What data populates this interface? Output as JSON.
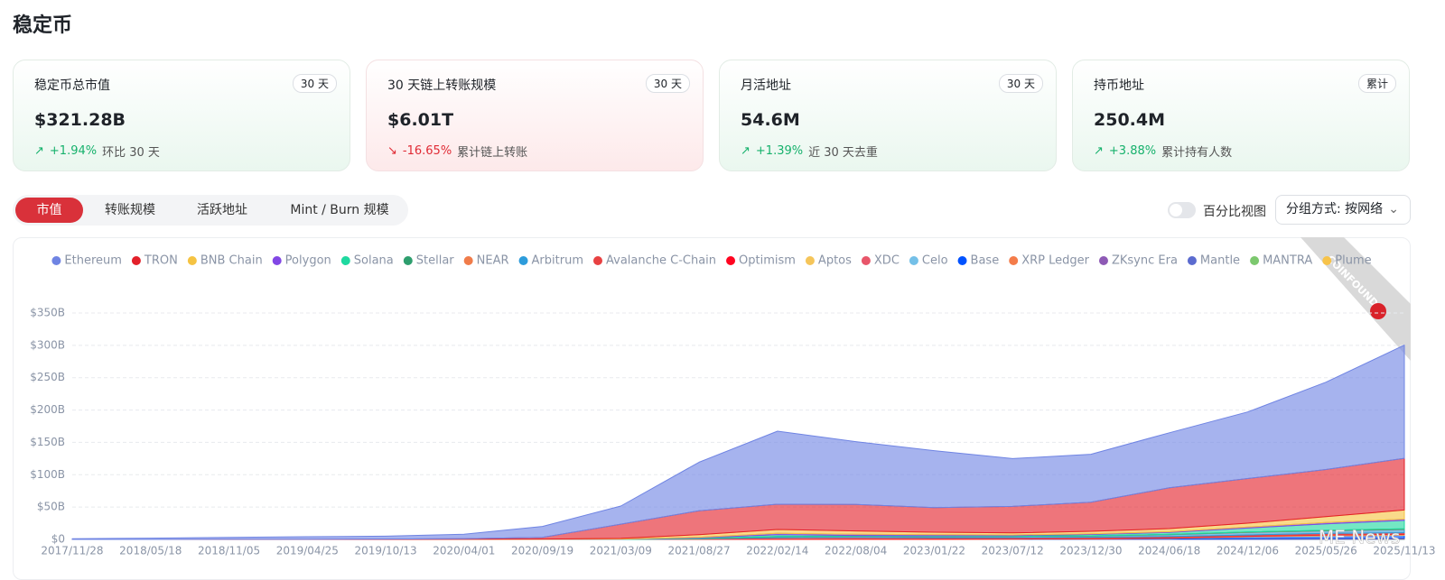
{
  "header": {
    "title": "稳定币"
  },
  "cards": [
    {
      "label": "稳定币总市值",
      "badge": "30 天",
      "value": "$321.28B",
      "change": "+1.94%",
      "note": "环比 30 天"
    },
    {
      "label": "30 天链上转账规模",
      "badge": "30 天",
      "value": "$6.01T",
      "change": "-16.65%",
      "note": "累计链上转账"
    },
    {
      "label": "月活地址",
      "badge": "30 天",
      "value": "54.6M",
      "change": "+1.39%",
      "note": "近 30 天去重"
    },
    {
      "label": "持币地址",
      "badge": "累计",
      "value": "250.4M",
      "change": "+3.88%",
      "note": "累计持有人数"
    }
  ],
  "tabs": [
    "市值",
    "转账规模",
    "活跃地址",
    "Mint / Burn 规模"
  ],
  "controls": {
    "toggle_label": "百分比视图",
    "group_by": "分组方式: 按网络"
  },
  "watermarks": [
    "COINFOUND",
    "ME News"
  ],
  "chart_data": {
    "type": "stacked_area",
    "categories": [
      "2017/11/28",
      "2018/05/18",
      "2018/11/05",
      "2019/04/25",
      "2019/10/13",
      "2020/04/01",
      "2020/09/19",
      "2021/03/09",
      "2021/08/27",
      "2022/02/14",
      "2022/08/04",
      "2023/01/22",
      "2023/07/12",
      "2023/12/30",
      "2024/06/18",
      "2024/12/06",
      "2025/05/26",
      "2025/11/13"
    ],
    "ylim": [
      0,
      350
    ],
    "yticks": [
      {
        "value": 0,
        "label": "$0"
      },
      {
        "value": 50,
        "label": "$50B"
      },
      {
        "value": 100,
        "label": "$100B"
      },
      {
        "value": 150,
        "label": "$150B"
      },
      {
        "value": 200,
        "label": "$200B"
      },
      {
        "value": 250,
        "label": "$250B"
      },
      {
        "value": 300,
        "label": "$300B"
      },
      {
        "value": 350,
        "label": "$350B"
      }
    ],
    "grid": true,
    "series": [
      {
        "name": "Ethereum",
        "color": "#6f84e3",
        "values": [
          1,
          2,
          3,
          4,
          4.5,
          7,
          17,
          28,
          75,
          113,
          97,
          88,
          74,
          74,
          85,
          103,
          135,
          175
        ]
      },
      {
        "name": "TRON",
        "color": "#e3202a",
        "values": [
          0,
          0,
          0.1,
          0.2,
          0.5,
          1,
          2.5,
          22,
          37,
          39,
          41,
          38,
          41,
          45,
          63,
          69,
          73,
          80
        ]
      },
      {
        "name": "BNB Chain",
        "color": "#f5c342",
        "values": [
          0,
          0,
          0,
          0,
          0,
          0.1,
          0.5,
          1,
          4,
          6,
          5,
          4,
          3,
          4,
          5,
          6,
          9,
          14
        ]
      },
      {
        "name": "Polygon",
        "color": "#8247e5",
        "values": [
          0,
          0,
          0,
          0,
          0,
          0,
          0,
          0.3,
          1,
          2,
          2,
          1.5,
          1,
          1,
          1,
          1.5,
          2,
          2
        ]
      },
      {
        "name": "Solana",
        "color": "#1fd9a0",
        "values": [
          0,
          0,
          0,
          0,
          0,
          0,
          0.1,
          0.3,
          1,
          3,
          1,
          1,
          1,
          2,
          3,
          6,
          10,
          13
        ]
      },
      {
        "name": "Stellar",
        "color": "#2e9e6e",
        "values": [
          0,
          0,
          0,
          0,
          0,
          0,
          0,
          0,
          0.1,
          0.2,
          0.2,
          0.2,
          0.2,
          0.3,
          0.3,
          0.4,
          0.5,
          0.6
        ]
      },
      {
        "name": "NEAR",
        "color": "#f07c4a",
        "values": [
          0,
          0,
          0,
          0,
          0,
          0,
          0,
          0,
          0,
          0,
          0,
          0,
          0.1,
          0.1,
          0.2,
          0.3,
          0.4,
          0.5
        ]
      },
      {
        "name": "Arbitrum",
        "color": "#2d9cdb",
        "values": [
          0,
          0,
          0,
          0,
          0,
          0,
          0,
          0,
          0.5,
          1.5,
          2,
          2,
          2,
          2,
          3,
          4,
          4,
          5
        ]
      },
      {
        "name": "Avalanche C-Chain",
        "color": "#e84142",
        "values": [
          0,
          0,
          0,
          0,
          0,
          0,
          0,
          0,
          0.5,
          2,
          2,
          1.5,
          1.5,
          1.5,
          1.5,
          1.5,
          2,
          2
        ]
      },
      {
        "name": "Optimism",
        "color": "#ff0420",
        "values": [
          0,
          0,
          0,
          0,
          0,
          0,
          0,
          0,
          0.2,
          0.6,
          0.8,
          0.8,
          0.7,
          0.7,
          0.7,
          0.6,
          0.6,
          0.6
        ]
      },
      {
        "name": "Aptos",
        "color": "#f5c55a",
        "values": [
          0,
          0,
          0,
          0,
          0,
          0,
          0,
          0,
          0,
          0,
          0,
          0,
          0,
          0.1,
          0.3,
          0.6,
          1,
          1.2
        ]
      },
      {
        "name": "XDC",
        "color": "#e8566a",
        "values": [
          0,
          0,
          0,
          0,
          0,
          0,
          0,
          0,
          0,
          0,
          0,
          0,
          0,
          0,
          0,
          0.1,
          0.1,
          0.2
        ]
      },
      {
        "name": "Celo",
        "color": "#74c0e8",
        "values": [
          0,
          0,
          0,
          0,
          0,
          0,
          0,
          0,
          0.1,
          0.1,
          0.1,
          0.1,
          0.1,
          0.1,
          0.1,
          0.1,
          0.1,
          0.1
        ]
      },
      {
        "name": "Base",
        "color": "#0052ff",
        "values": [
          0,
          0,
          0,
          0,
          0,
          0,
          0,
          0,
          0,
          0,
          0,
          0,
          0.1,
          0.3,
          1,
          3,
          4,
          4.5
        ]
      },
      {
        "name": "XRP Ledger",
        "color": "#f47c4a",
        "values": [
          0,
          0,
          0,
          0,
          0,
          0,
          0,
          0,
          0,
          0,
          0,
          0,
          0,
          0,
          0,
          0.1,
          0.3,
          0.5
        ]
      },
      {
        "name": "ZKsync Era",
        "color": "#8e5ab5",
        "values": [
          0,
          0,
          0,
          0,
          0,
          0,
          0,
          0,
          0,
          0,
          0,
          0.1,
          0.1,
          0.1,
          0.1,
          0.1,
          0.1,
          0.1
        ]
      },
      {
        "name": "Mantle",
        "color": "#5b6bcf",
        "values": [
          0,
          0,
          0,
          0,
          0,
          0,
          0,
          0,
          0,
          0,
          0,
          0,
          0.2,
          0.4,
          0.6,
          0.8,
          0.8,
          0.8
        ]
      },
      {
        "name": "MANTRA",
        "color": "#7cc86e",
        "values": [
          0,
          0,
          0,
          0,
          0,
          0,
          0,
          0,
          0,
          0,
          0,
          0,
          0,
          0,
          0,
          0,
          0.1,
          0.1
        ]
      },
      {
        "name": "Plume",
        "color": "#f7c34a",
        "values": [
          0,
          0,
          0,
          0,
          0,
          0,
          0,
          0,
          0,
          0,
          0,
          0,
          0,
          0,
          0,
          0,
          0.1,
          0.2
        ]
      }
    ]
  }
}
